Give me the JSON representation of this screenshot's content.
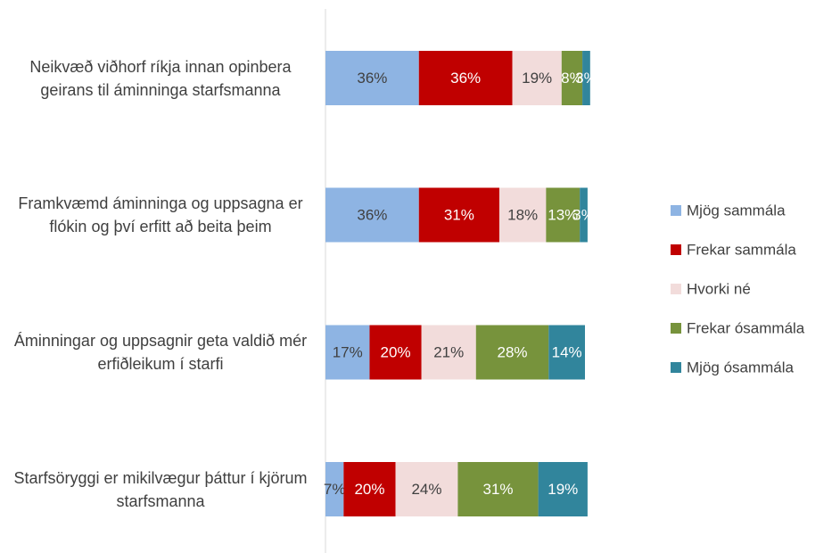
{
  "chart_data": {
    "type": "stacked_bar_horizontal",
    "categories": [
      "Neikvæð viðhorf ríkja innan opinbera geirans til áminninga starfsmanna",
      "Framkvæmd áminninga og uppsagna er flókin og því erfitt að beita þeim",
      "Áminningar og uppsagnir geta valdið mér erfiðleikum í starfi",
      "Starfsöryggi er mikilvægur þáttur í kjörum starfsmanna"
    ],
    "xlim": [
      0,
      100
    ],
    "legend": "right",
    "series": [
      {
        "name": "Mjög sammála",
        "color": "#8eb4e3",
        "values": [
          36,
          36,
          17,
          7
        ],
        "value_labels": [
          "36%",
          "36%",
          "17%",
          "7%"
        ]
      },
      {
        "name": "Frekar sammála",
        "color": "#c00000",
        "values": [
          36,
          31,
          20,
          20
        ],
        "value_labels": [
          "36%",
          "31%",
          "20%",
          "20%"
        ]
      },
      {
        "name": "Hvorki né",
        "color": "#f2dcdb",
        "values": [
          19,
          18,
          21,
          24
        ],
        "value_labels": [
          "19%",
          "18%",
          "21%",
          "24%"
        ]
      },
      {
        "name": "Frekar ósammála",
        "color": "#77933c",
        "values": [
          8,
          13,
          28,
          31
        ],
        "value_labels": [
          "8%",
          "13%",
          "28%",
          "31%"
        ]
      },
      {
        "name": "Mjög ósammála",
        "color": "#31859c",
        "values": [
          3,
          3,
          14,
          19
        ],
        "value_labels": [
          "3%",
          "3%",
          "14%",
          "19%"
        ]
      }
    ]
  }
}
